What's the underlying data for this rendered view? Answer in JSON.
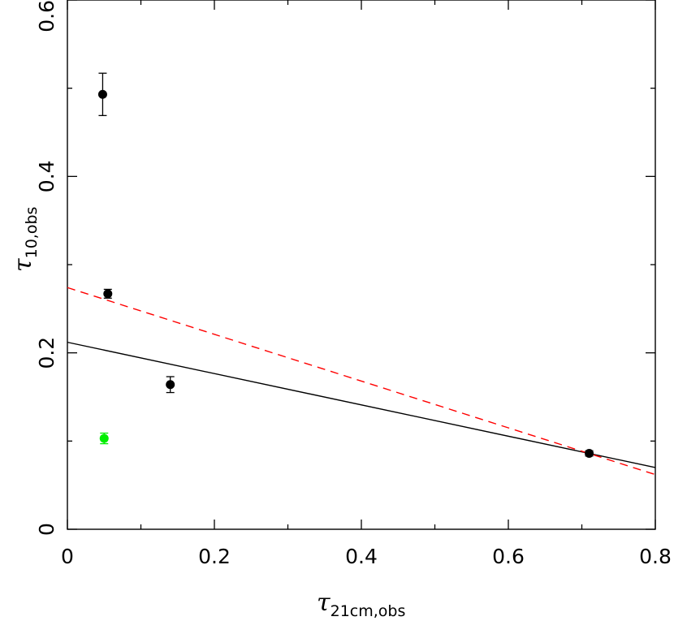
{
  "chart_data": {
    "type": "scatter",
    "title": "",
    "xlabel": {
      "symbol": "τ",
      "subscript": "21cm,obs"
    },
    "ylabel": {
      "symbol": "τ",
      "subscript": "10,obs"
    },
    "xlim": [
      0,
      0.8
    ],
    "ylim": [
      0,
      0.6
    ],
    "xticks": [
      {
        "value": 0,
        "label": "0"
      },
      {
        "value": 0.2,
        "label": "0.2"
      },
      {
        "value": 0.4,
        "label": "0.4"
      },
      {
        "value": 0.6,
        "label": "0.6"
      },
      {
        "value": 0.8,
        "label": "0.8"
      }
    ],
    "yticks": [
      {
        "value": 0,
        "label": "0"
      },
      {
        "value": 0.2,
        "label": "0.2"
      },
      {
        "value": 0.4,
        "label": "0.4"
      },
      {
        "value": 0.6,
        "label": "0.6"
      }
    ],
    "x_minor_step": 0.1,
    "y_minor_step": 0.1,
    "grid": false,
    "points": [
      {
        "x": 0.048,
        "y": 0.493,
        "yerr": 0.024,
        "color": "#000000"
      },
      {
        "x": 0.055,
        "y": 0.267,
        "yerr": 0.005,
        "color": "#000000"
      },
      {
        "x": 0.14,
        "y": 0.164,
        "yerr": 0.009,
        "color": "#000000"
      },
      {
        "x": 0.71,
        "y": 0.086,
        "yerr": 0.003,
        "color": "#000000"
      },
      {
        "x": 0.05,
        "y": 0.103,
        "yerr": 0.006,
        "color": "#00ee00"
      }
    ],
    "lines": [
      {
        "style": "solid",
        "color": "#000000",
        "x": [
          0,
          0.8
        ],
        "y": [
          0.212,
          0.07
        ]
      },
      {
        "style": "dashed",
        "color": "#ff0000",
        "x": [
          0,
          0.8
        ],
        "y": [
          0.274,
          0.062
        ]
      }
    ]
  }
}
